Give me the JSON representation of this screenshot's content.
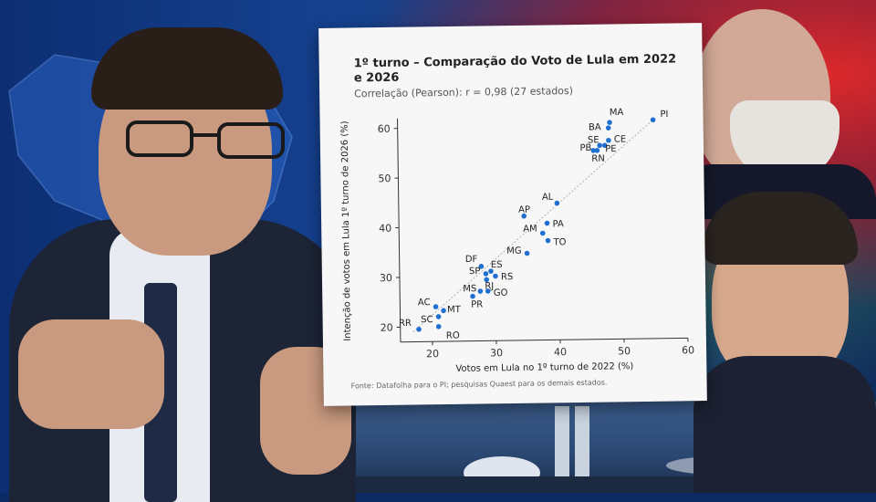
{
  "chart_data": {
    "type": "scatter",
    "title": "1º turno – Comparação do Voto de Lula em 2022 e 2026",
    "subtitle": "Correlação (Pearson): r = 0,98 (27 estados)",
    "xlabel": "Votos em Lula no 1º turno de 2022 (%)",
    "ylabel": "Intenção de votos em Lula 1º turno de 2026 (%)",
    "xlim": [
      15,
      60
    ],
    "ylim": [
      17,
      62
    ],
    "x_ticks": [
      "20",
      "30",
      "40",
      "50",
      "60"
    ],
    "y_ticks": [
      "20",
      "30",
      "40",
      "50",
      "60"
    ],
    "grid": false,
    "trend_line": "diagonal dotted",
    "source": "Fonte: Datafolha para o PI; pesquisas Quaest para os demais estados.",
    "points": [
      {
        "label": "PI",
        "x": 55.0,
        "y": 61.0
      },
      {
        "label": "MA",
        "x": 48.2,
        "y": 60.6
      },
      {
        "label": "BA",
        "x": 48.0,
        "y": 59.5
      },
      {
        "label": "CE",
        "x": 48.0,
        "y": 57.0
      },
      {
        "label": "SE",
        "x": 47.4,
        "y": 56.0
      },
      {
        "label": "PE",
        "x": 46.6,
        "y": 56.0
      },
      {
        "label": "PB",
        "x": 46.2,
        "y": 55.0
      },
      {
        "label": "RN",
        "x": 45.6,
        "y": 55.0
      },
      {
        "label": "AP",
        "x": 34.6,
        "y": 42.0
      },
      {
        "label": "AL",
        "x": 39.8,
        "y": 44.5
      },
      {
        "label": "PA",
        "x": 38.2,
        "y": 40.5
      },
      {
        "label": "AM",
        "x": 37.5,
        "y": 38.5
      },
      {
        "label": "TO",
        "x": 38.3,
        "y": 37.0
      },
      {
        "label": "MG",
        "x": 35.0,
        "y": 34.5
      },
      {
        "label": "DF",
        "x": 27.8,
        "y": 32.0
      },
      {
        "label": "ES",
        "x": 29.3,
        "y": 31.0
      },
      {
        "label": "SP",
        "x": 28.5,
        "y": 30.5
      },
      {
        "label": "RS",
        "x": 30.0,
        "y": 30.0
      },
      {
        "label": "RJ",
        "x": 28.6,
        "y": 29.3
      },
      {
        "label": "MS",
        "x": 27.6,
        "y": 27.0
      },
      {
        "label": "GO",
        "x": 28.8,
        "y": 27.0
      },
      {
        "label": "PR",
        "x": 26.4,
        "y": 26.0
      },
      {
        "label": "AC",
        "x": 20.6,
        "y": 24.0
      },
      {
        "label": "MT",
        "x": 21.8,
        "y": 23.2
      },
      {
        "label": "SC",
        "x": 21.0,
        "y": 22.0
      },
      {
        "label": "RR",
        "x": 17.9,
        "y": 19.5
      },
      {
        "label": "RO",
        "x": 21.0,
        "y": 20.0
      }
    ],
    "colors": {
      "point": "#1f6fd1",
      "axis": "#333333",
      "trend": "#b0b0b0"
    }
  }
}
